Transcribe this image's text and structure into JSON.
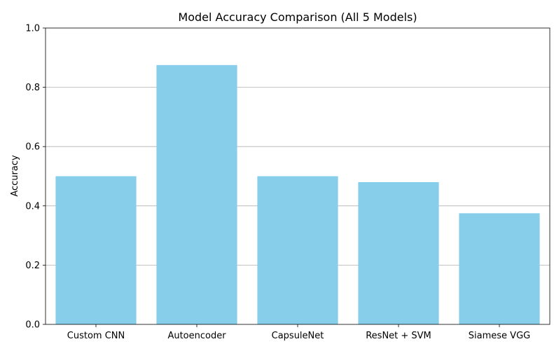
{
  "chart_data": {
    "type": "bar",
    "title": "Model Accuracy Comparison (All 5 Models)",
    "xlabel": "",
    "ylabel": "Accuracy",
    "categories": [
      "Custom CNN",
      "Autoencoder",
      "CapsuleNet",
      "ResNet + SVM",
      "Siamese VGG"
    ],
    "values": [
      0.5,
      0.875,
      0.5,
      0.48,
      0.375
    ],
    "ylim": [
      0,
      1.0
    ],
    "yticks": [
      "0.0",
      "0.2",
      "0.4",
      "0.6",
      "0.8",
      "1.0"
    ],
    "grid": "y",
    "bar_color": "#87ceeb"
  }
}
